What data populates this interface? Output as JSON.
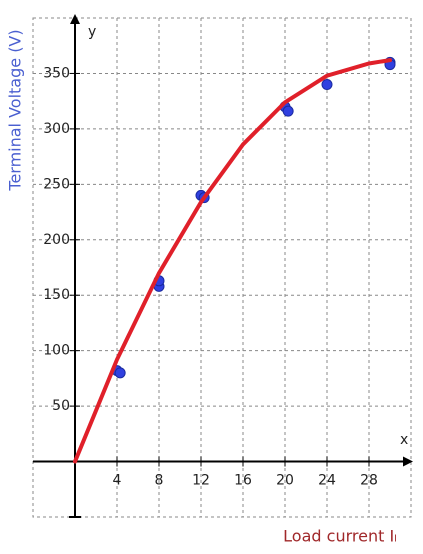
{
  "chart_data": {
    "type": "scatter",
    "x_label": "Load current Iₗ",
    "y_label": "Terminal Voltage (V)",
    "x_axis_name": "x",
    "y_axis_name": "y",
    "xlim": [
      -4,
      32
    ],
    "ylim": [
      -50,
      400
    ],
    "xticks": [
      4,
      8,
      12,
      16,
      20,
      24,
      28
    ],
    "yticks": [
      50,
      100,
      150,
      200,
      250,
      300,
      350
    ],
    "grid": true,
    "series": [
      {
        "mode": "markers",
        "color": "#3040e0",
        "x": [
          4,
          4.3,
          8,
          8,
          12,
          12.3,
          20,
          20.3,
          24,
          30,
          30
        ],
        "values": [
          82,
          80,
          158,
          163,
          240,
          238,
          320,
          316,
          340,
          360,
          358
        ]
      },
      {
        "mode": "line",
        "color": "#e0202a",
        "x": [
          0,
          4,
          8,
          12,
          16,
          20,
          24,
          28,
          30
        ],
        "values": [
          0,
          92,
          170,
          234,
          286,
          324,
          348,
          359,
          362
        ]
      }
    ],
    "y_label_color": "#4a5fd0",
    "x_label_color": "#a0282a"
  }
}
